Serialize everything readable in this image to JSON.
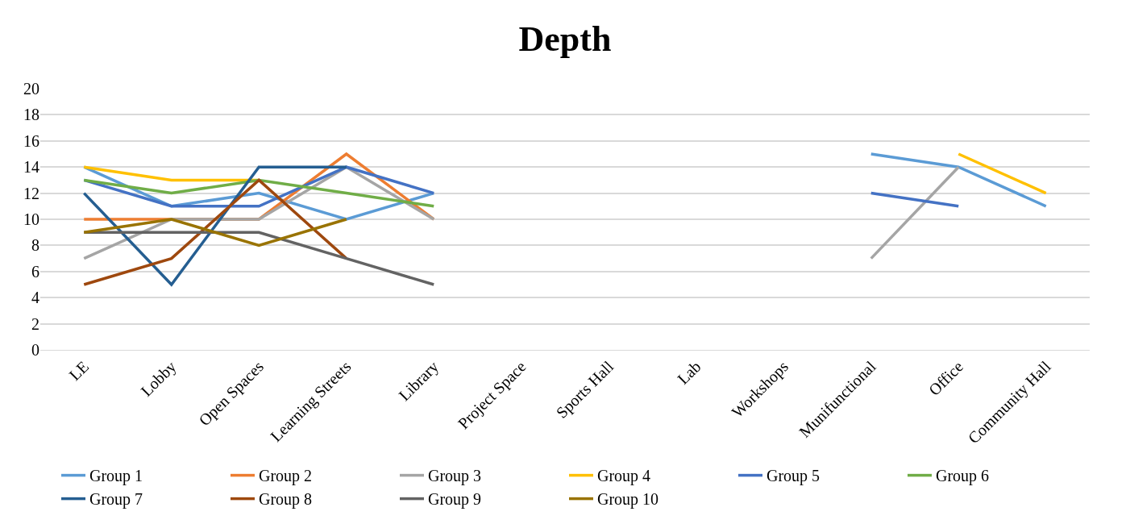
{
  "chart_data": {
    "type": "line",
    "title": "Depth",
    "categories": [
      "LE",
      "Lobby",
      "Open Spaces",
      "Learning Streets",
      "Library",
      "Project Space",
      "Sports Hall",
      "Lab",
      "Workshops",
      "Munifunctional",
      "Office",
      "Community Hall"
    ],
    "series": [
      {
        "name": "Group 1",
        "color": "#5b9bd5",
        "values": [
          14,
          11,
          12,
          10,
          12,
          null,
          null,
          null,
          null,
          15,
          14,
          11
        ]
      },
      {
        "name": "Group 2",
        "color": "#ed7d31",
        "values": [
          10,
          10,
          10,
          15,
          10,
          null,
          null,
          null,
          null,
          null,
          null,
          null
        ]
      },
      {
        "name": "Group 3",
        "color": "#a5a5a5",
        "values": [
          7,
          10,
          10,
          14,
          10,
          null,
          null,
          null,
          null,
          7,
          14,
          null
        ]
      },
      {
        "name": "Group 4",
        "color": "#ffc000",
        "values": [
          14,
          13,
          13,
          null,
          null,
          null,
          null,
          null,
          null,
          null,
          15,
          12
        ]
      },
      {
        "name": "Group 5",
        "color": "#4472c4",
        "values": [
          13,
          11,
          11,
          14,
          12,
          null,
          null,
          null,
          null,
          12,
          11,
          null
        ]
      },
      {
        "name": "Group 6",
        "color": "#70ad47",
        "values": [
          13,
          12,
          13,
          12,
          11,
          null,
          null,
          null,
          null,
          null,
          null,
          null
        ]
      },
      {
        "name": "Group 7",
        "color": "#255e91",
        "values": [
          12,
          5,
          14,
          14,
          null,
          null,
          null,
          null,
          null,
          null,
          null,
          null
        ]
      },
      {
        "name": "Group 8",
        "color": "#9e480e",
        "values": [
          5,
          7,
          13,
          7,
          null,
          null,
          null,
          null,
          null,
          null,
          null,
          null
        ]
      },
      {
        "name": "Group 9",
        "color": "#636363",
        "values": [
          9,
          9,
          9,
          7,
          5,
          null,
          null,
          null,
          null,
          null,
          null,
          null
        ]
      },
      {
        "name": "Group 10",
        "color": "#997300",
        "values": [
          9,
          10,
          8,
          10,
          null,
          null,
          null,
          null,
          null,
          null,
          null,
          null
        ]
      }
    ],
    "ylim": [
      0,
      20
    ],
    "yticks": [
      0,
      2,
      4,
      6,
      8,
      10,
      12,
      14,
      16,
      18,
      20
    ],
    "grid": "y",
    "legend": "bottom",
    "marker": "none",
    "line_style": "solid"
  }
}
